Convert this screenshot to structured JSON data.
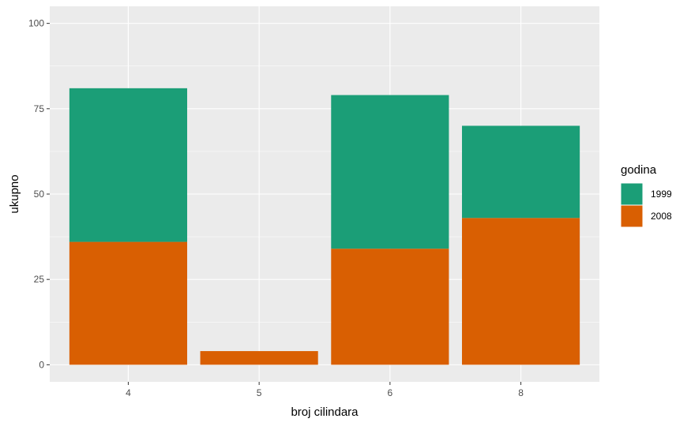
{
  "chart_data": {
    "type": "bar",
    "stacked": true,
    "categories": [
      "4",
      "5",
      "6",
      "8"
    ],
    "series": [
      {
        "name": "2008",
        "color": "#D95F02",
        "values": [
          36,
          4,
          34,
          43
        ]
      },
      {
        "name": "1999",
        "color": "#1B9E77",
        "values": [
          45,
          0,
          45,
          27
        ]
      }
    ],
    "xlabel": "broj cilindara",
    "ylabel": "ukupno",
    "ylim": [
      -5,
      105
    ],
    "yticks": [
      "0",
      "25",
      "50",
      "75",
      "100"
    ],
    "grid": true,
    "legend": {
      "title": "godina",
      "position": "right",
      "items": [
        {
          "label": "1999",
          "color": "#1B9E77"
        },
        {
          "label": "2008",
          "color": "#D95F02"
        }
      ]
    },
    "panel_background": "#EBEBEB",
    "grid_color": "#FFFFFF"
  }
}
